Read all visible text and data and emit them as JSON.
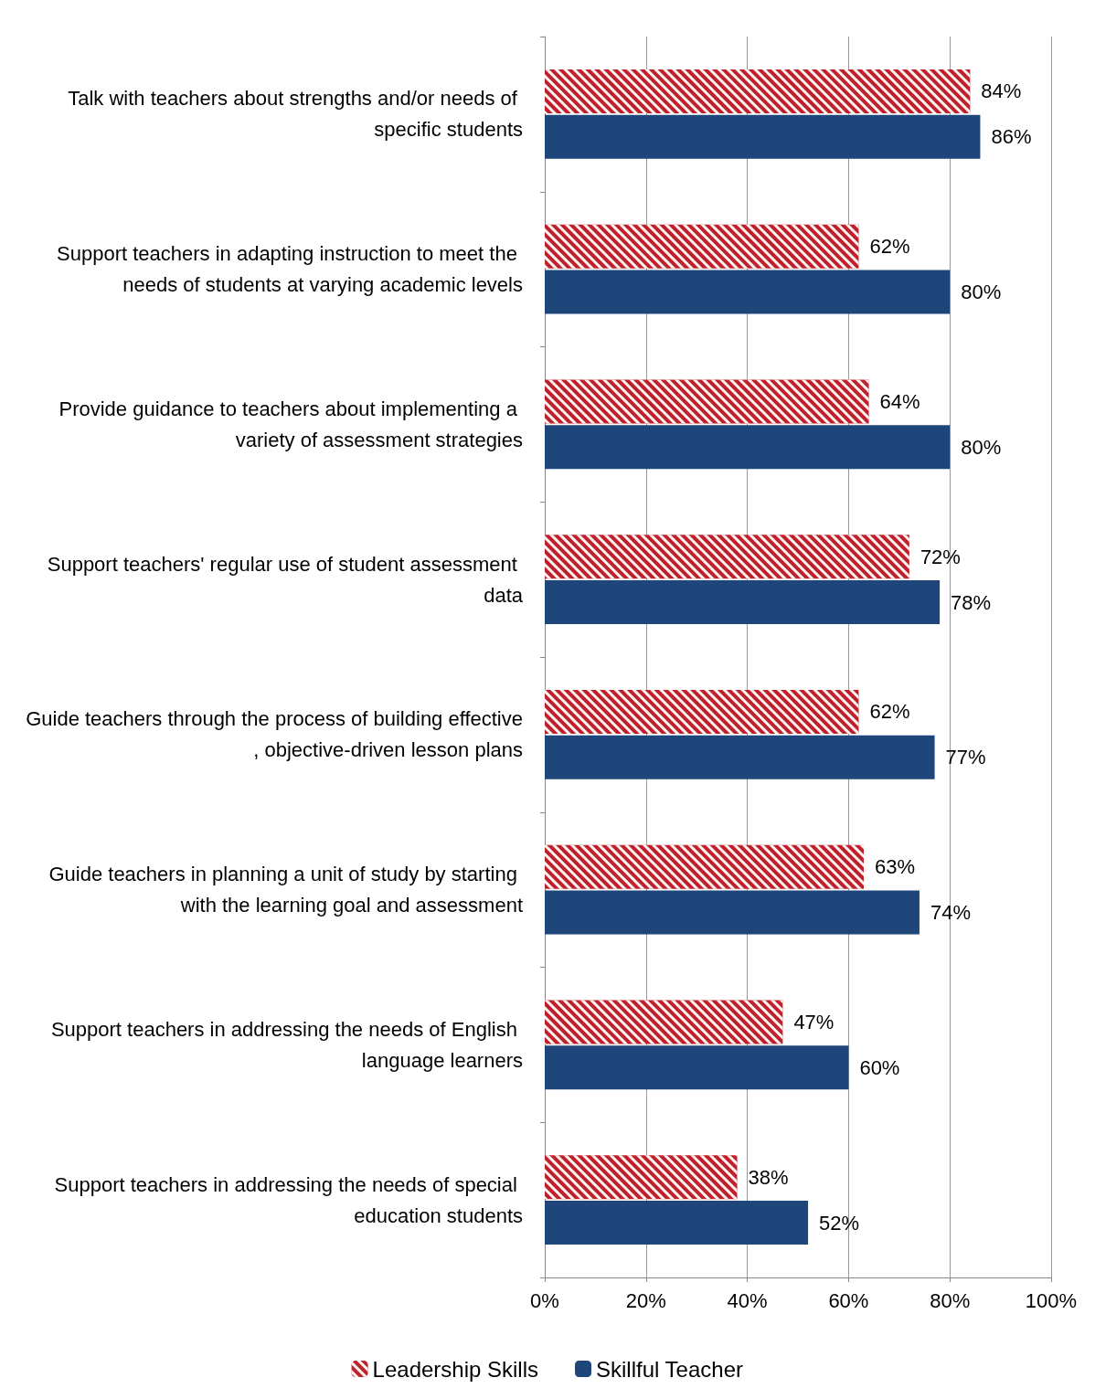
{
  "chart_data": {
    "type": "bar",
    "orientation": "horizontal",
    "categories": [
      "Talk with teachers about strengths and/or needs of specific students",
      "Support teachers in adapting instruction to meet the needs of students at varying academic levels",
      "Provide guidance to teachers about implementing a variety of assessment strategies",
      "Support teachers' regular use of student assessment data",
      "Guide teachers through the process of building effective, objective-driven lesson plans",
      "Guide teachers in planning a unit of study by starting with the learning goal and assessment",
      "Support teachers in addressing the needs of English language learners",
      "Support teachers in addressing the needs of special education students"
    ],
    "series": [
      {
        "name": "Leadership Skills",
        "color": "#c0202a",
        "values": [
          84,
          62,
          64,
          72,
          62,
          63,
          47,
          38
        ],
        "value_labels": [
          "84%",
          "62%",
          "64%",
          "72%",
          "62%",
          "63%",
          "47%",
          "38%"
        ]
      },
      {
        "name": "Skillful Teacher",
        "color": "#1f467a",
        "values": [
          86,
          80,
          80,
          78,
          77,
          74,
          60,
          52
        ],
        "value_labels": [
          "86%",
          "80%",
          "80%",
          "78%",
          "77%",
          "74%",
          "60%",
          "52%"
        ]
      }
    ],
    "xlim": [
      0,
      100
    ],
    "xticks": [
      {
        "value": 0,
        "label": "0%"
      },
      {
        "value": 20,
        "label": "20%"
      },
      {
        "value": 40,
        "label": "40%"
      },
      {
        "value": 60,
        "label": "60%"
      },
      {
        "value": 80,
        "label": "80%"
      },
      {
        "value": 100,
        "label": "100%"
      }
    ],
    "grid": "x",
    "legend": "bottom"
  }
}
